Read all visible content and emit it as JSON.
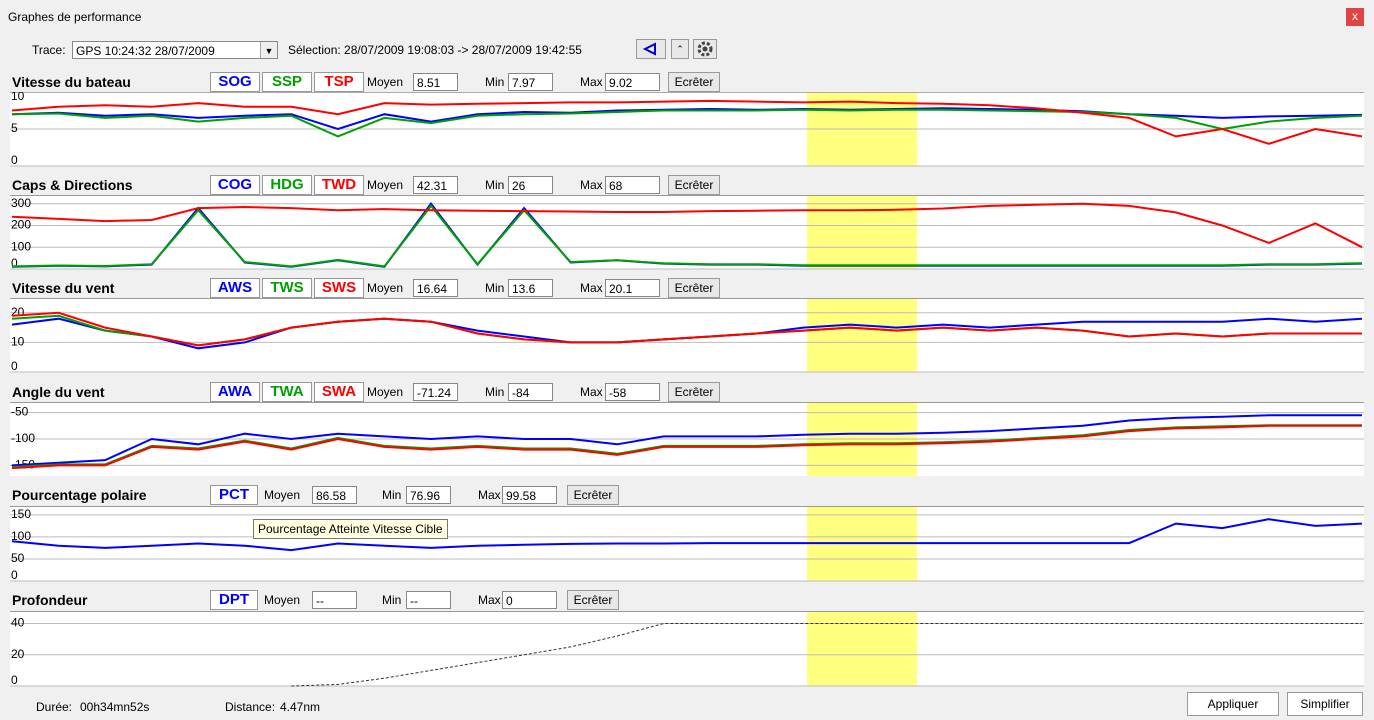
{
  "window": {
    "title": "Graphes de performance",
    "close": "x"
  },
  "toolbar": {
    "trace_label": "Trace:",
    "trace_value": "GPS 10:24:32 28/07/2009",
    "selection": "Sélection: 28/07/2009 19:08:03 -> 28/07/2009 19:42:55"
  },
  "panels": [
    {
      "title": "Vitesse du bateau",
      "stats": {
        "mean_label": "Moyen",
        "mean": "8.51",
        "min_label": "Min",
        "min": "7.97",
        "max_label": "Max",
        "max": "9.02"
      },
      "clip": "Ecrêter",
      "ylim": [
        0,
        10
      ],
      "yticks": [
        0,
        5,
        10
      ],
      "series": [
        {
          "name": "SOG",
          "color": "#0000ff",
          "values": [
            7,
            7.2,
            6.8,
            7,
            6.5,
            6.8,
            7,
            5,
            7,
            6,
            7,
            7.3,
            7.2,
            7.5,
            7.6,
            7.7,
            7.6,
            7.7,
            7.6,
            7.7,
            7.8,
            7.7,
            7.6,
            7.4,
            7,
            6.8,
            6.5,
            6.7,
            6.8,
            6.9
          ]
        },
        {
          "name": "SSP",
          "color": "#00a000",
          "values": [
            7,
            7.1,
            6.5,
            6.8,
            6,
            6.5,
            6.8,
            4,
            6.5,
            5.8,
            6.8,
            7,
            7.1,
            7.3,
            7.5,
            7.5,
            7.5,
            7.6,
            7.5,
            7.6,
            7.6,
            7.5,
            7.4,
            7.3,
            7,
            6.5,
            5,
            6,
            6.5,
            6.8
          ]
        },
        {
          "name": "TSP",
          "color": "#ff0000",
          "values": [
            7.5,
            8,
            8.2,
            8,
            8.5,
            8,
            8,
            7,
            8.5,
            8.3,
            8.4,
            8.5,
            8.6,
            8.6,
            8.7,
            8.8,
            8.7,
            8.6,
            8.7,
            8.5,
            8.4,
            8.2,
            7.8,
            7.2,
            6.5,
            4,
            5,
            3,
            5,
            4
          ]
        }
      ]
    },
    {
      "title": "Caps & Directions",
      "stats": {
        "mean_label": "Moyen",
        "mean": "42.31",
        "min_label": "Min",
        "min": "26",
        "max_label": "Max",
        "max": "68"
      },
      "clip": "Ecrêter",
      "ylim": [
        0,
        340
      ],
      "yticks": [
        0,
        100,
        200,
        300
      ],
      "series": [
        {
          "name": "COG",
          "color": "#0000ff",
          "values": [
            10,
            15,
            12,
            20,
            280,
            30,
            10,
            40,
            10,
            300,
            20,
            280,
            30,
            40,
            25,
            20,
            20,
            15,
            15,
            15,
            15,
            15,
            15,
            15,
            15,
            15,
            15,
            20,
            20,
            25
          ]
        },
        {
          "name": "HDG",
          "color": "#00a000",
          "values": [
            12,
            16,
            14,
            22,
            270,
            32,
            12,
            42,
            12,
            290,
            22,
            270,
            32,
            40,
            26,
            22,
            22,
            17,
            17,
            17,
            17,
            17,
            17,
            17,
            17,
            17,
            17,
            22,
            22,
            27
          ]
        },
        {
          "name": "TWD",
          "color": "#ff0000",
          "values": [
            240,
            230,
            220,
            225,
            280,
            285,
            280,
            270,
            275,
            270,
            268,
            266,
            264,
            262,
            262,
            266,
            268,
            270,
            270,
            272,
            278,
            290,
            295,
            300,
            290,
            260,
            200,
            120,
            210,
            100
          ]
        }
      ]
    },
    {
      "title": "Vitesse du vent",
      "stats": {
        "mean_label": "Moyen",
        "mean": "16.64",
        "min_label": "Min",
        "min": "13.6",
        "max_label": "Max",
        "max": "20.1"
      },
      "clip": "Ecrêter",
      "ylim": [
        0,
        25
      ],
      "yticks": [
        0,
        10,
        20
      ],
      "series": [
        {
          "name": "AWS",
          "color": "#0000ff",
          "values": [
            16,
            18,
            14,
            12,
            8,
            10,
            15,
            17,
            18,
            17,
            14,
            12,
            10,
            10,
            11,
            12,
            13,
            15,
            16,
            15,
            16,
            15,
            16,
            17,
            17,
            17,
            17,
            18,
            17,
            18
          ]
        },
        {
          "name": "TWS",
          "color": "#00a000",
          "values": [
            18,
            19,
            14,
            12,
            9,
            11,
            15,
            17,
            18,
            17,
            13,
            11,
            10,
            10,
            11,
            12,
            13,
            14,
            15,
            14,
            15,
            14,
            15,
            14,
            12,
            13,
            12,
            13,
            13,
            13
          ]
        },
        {
          "name": "SWS",
          "color": "#ff0000",
          "values": [
            19,
            20,
            15,
            12,
            9,
            11,
            15,
            17,
            18,
            17,
            13,
            11,
            10,
            10,
            11,
            12,
            13,
            14,
            15,
            14,
            15,
            14,
            15,
            14,
            12,
            13,
            12,
            13,
            13,
            13
          ]
        }
      ]
    },
    {
      "title": "Angle du vent",
      "stats": {
        "mean_label": "Moyen",
        "mean": "-71.24",
        "min_label": "Min",
        "min": "-84",
        "max_label": "Max",
        "max": "-58"
      },
      "clip": "Ecrêter",
      "ylim": [
        -170,
        -30
      ],
      "yticks": [
        -150,
        -100,
        -50
      ],
      "series": [
        {
          "name": "AWA",
          "color": "#0000ff",
          "values": [
            -150,
            -145,
            -140,
            -100,
            -110,
            -90,
            -100,
            -90,
            -95,
            -100,
            -95,
            -100,
            -100,
            -110,
            -95,
            -95,
            -95,
            -92,
            -90,
            -90,
            -88,
            -85,
            -80,
            -75,
            -65,
            -60,
            -58,
            -55,
            -55,
            -55
          ]
        },
        {
          "name": "TWA",
          "color": "#00a000",
          "values": [
            -153,
            -148,
            -148,
            -113,
            -118,
            -103,
            -118,
            -98,
            -113,
            -118,
            -113,
            -118,
            -118,
            -128,
            -113,
            -113,
            -113,
            -110,
            -108,
            -108,
            -106,
            -103,
            -98,
            -93,
            -83,
            -78,
            -76,
            -74,
            -74,
            -74
          ]
        },
        {
          "name": "SWA",
          "color": "#ff0000",
          "values": [
            -155,
            -150,
            -150,
            -115,
            -120,
            -105,
            -120,
            -100,
            -115,
            -120,
            -115,
            -120,
            -120,
            -130,
            -115,
            -115,
            -115,
            -112,
            -110,
            -110,
            -108,
            -105,
            -100,
            -95,
            -85,
            -80,
            -78,
            -75,
            -75,
            -75
          ]
        }
      ]
    },
    {
      "title": "Pourcentage polaire",
      "stats": {
        "mean_label": "Moyen",
        "mean": "86.58",
        "min_label": "Min",
        "min": "76.96",
        "max_label": "Max",
        "max": "99.58"
      },
      "clip": "Ecrêter",
      "ylim": [
        0,
        170
      ],
      "yticks": [
        0,
        50,
        100,
        150
      ],
      "series": [
        {
          "name": "PCT",
          "color": "#0000ff",
          "values": [
            90,
            80,
            75,
            80,
            85,
            80,
            70,
            85,
            80,
            75,
            80,
            82,
            84,
            85,
            85,
            86,
            86,
            86,
            86,
            86,
            86,
            86,
            86,
            86,
            86,
            130,
            120,
            140,
            125,
            130
          ]
        }
      ]
    },
    {
      "title": "Profondeur",
      "stats": {
        "mean_label": "Moyen",
        "mean": "--",
        "min_label": "Min",
        "min": "--",
        "max_label": "Max",
        "max": "0"
      },
      "clip": "Ecrêter",
      "ylim": [
        0,
        48
      ],
      "yticks": [
        0,
        20,
        40
      ],
      "series": [
        {
          "name": "DPT",
          "color": "#0000ff",
          "values": [
            null,
            null,
            null,
            null,
            null,
            null,
            0,
            1,
            5,
            10,
            15,
            20,
            25,
            32,
            40,
            40,
            40,
            40,
            40,
            40,
            40,
            40,
            40,
            40,
            40,
            40,
            40,
            40,
            40,
            40
          ]
        }
      ]
    }
  ],
  "tooltip": "Pourcentage Atteinte Vitesse Cible",
  "footer": {
    "duration_label": "Durée:",
    "duration": "00h34mn52s",
    "distance_label": "Distance:",
    "distance": "4.47nm",
    "apply": "Appliquer",
    "simplify": "Simplifier"
  }
}
